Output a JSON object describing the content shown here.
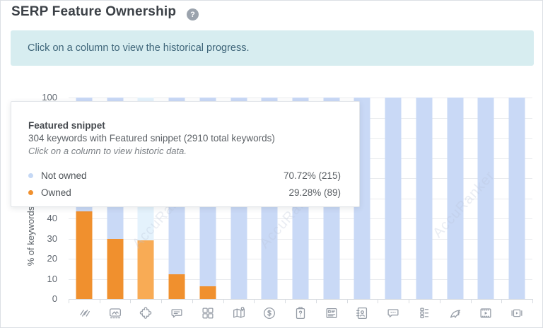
{
  "header": {
    "title": "SERP Feature Ownership",
    "help_glyph": "?"
  },
  "banner": {
    "text": "Click on a column to view the historical progress."
  },
  "tooltip": {
    "title": "Featured snippet",
    "subtitle": "304 keywords with Featured snippet (2910 total keywords)",
    "hint": "Click on a column to view historic data.",
    "rows": [
      {
        "label": "Not owned",
        "value": "70.72% (215)",
        "color": "#c5d8f5"
      },
      {
        "label": "Owned",
        "value": "29.28% (89)",
        "color": "#f0902e"
      }
    ]
  },
  "watermark": {
    "text": "AccuRanker"
  },
  "chart_data": {
    "type": "bar",
    "stacked": true,
    "title": "",
    "xlabel": "",
    "ylabel": "% of keywords",
    "ylim": [
      0,
      100
    ],
    "yticks": [
      0,
      10,
      20,
      30,
      40,
      50,
      60,
      70,
      80,
      90,
      100
    ],
    "grid": true,
    "legend_position": "tooltip",
    "categories": [
      "sitelinks-icon",
      "image-pack-icon",
      "featured-snippet-icon",
      "reviews-icon",
      "knowledge-cards-icon",
      "local-pack-icon",
      "shopping-icon",
      "question-icon",
      "knowledge-panel-icon",
      "address-book-icon",
      "comments-icon",
      "checklist-icon",
      "tweet-icon",
      "video-icon",
      "video-carousel-icon"
    ],
    "highlighted_index": 2,
    "highlight_colors": {
      "owned": "#f8ab55",
      "not_owned": "#e4f2fc"
    },
    "series": [
      {
        "name": "Owned",
        "color": "#f0902e",
        "values": [
          43.4,
          30,
          29.28,
          12.3,
          6.3,
          0,
          0,
          0,
          0,
          0,
          0,
          0,
          0,
          0,
          0
        ]
      },
      {
        "name": "Not owned",
        "color": "#c9d9f6",
        "values": [
          56.6,
          70,
          70.72,
          87.7,
          93.7,
          100,
          100,
          100,
          100,
          100,
          100,
          100,
          100,
          100,
          100
        ]
      }
    ]
  }
}
